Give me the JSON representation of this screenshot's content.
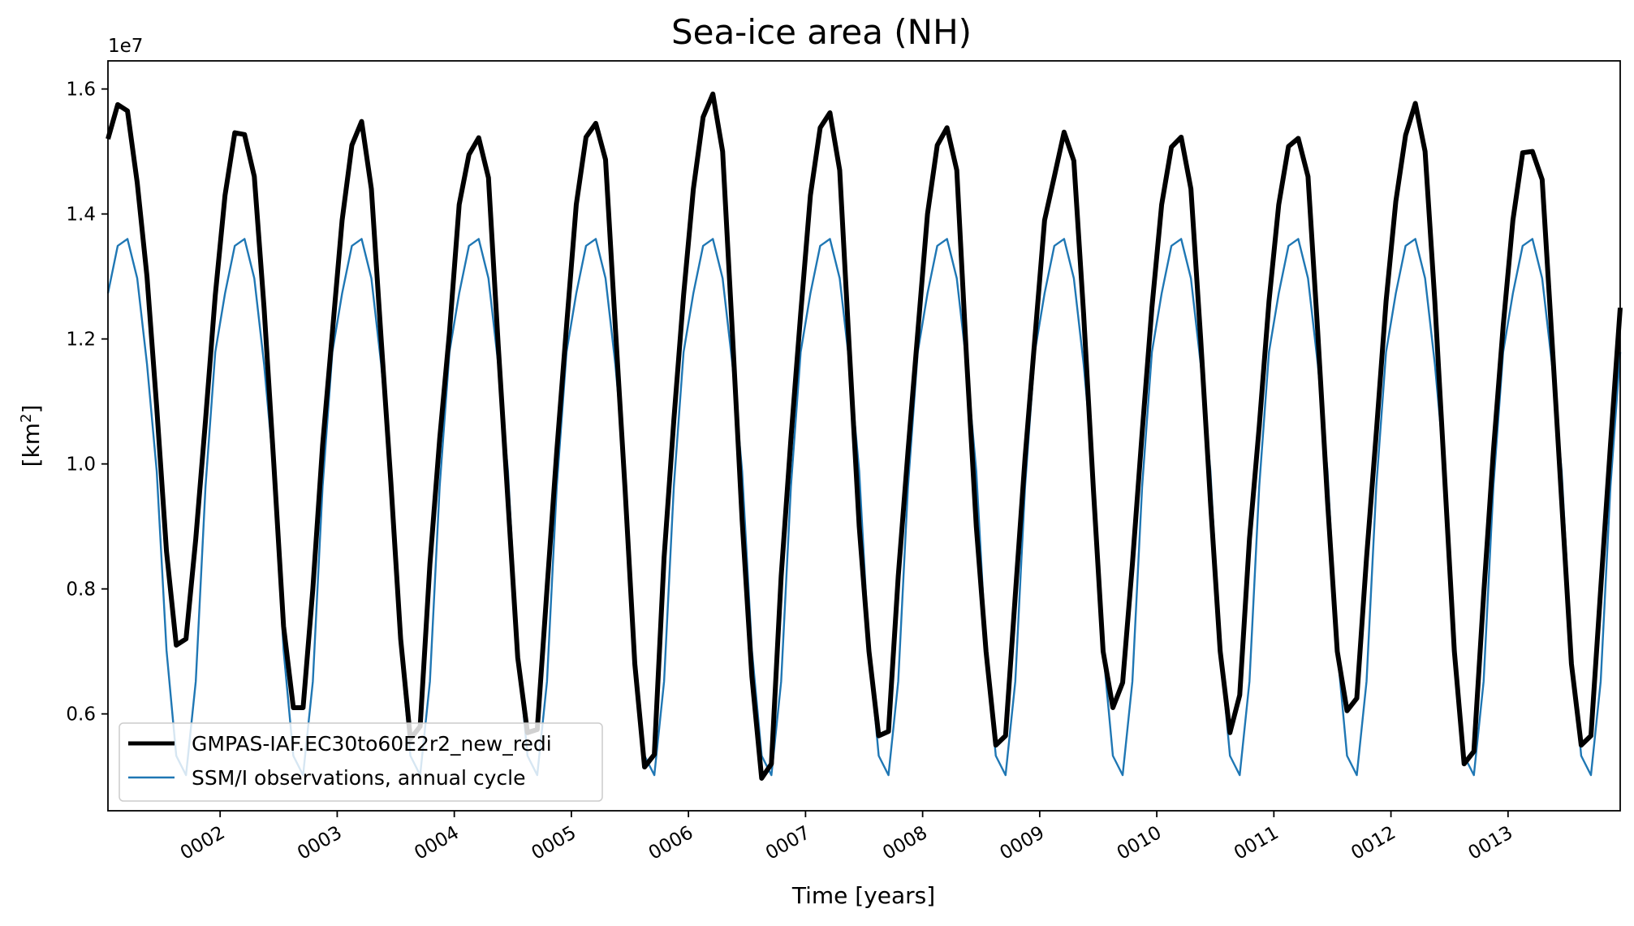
{
  "chart_data": {
    "type": "line",
    "title": "Sea-ice area (NH)",
    "xlabel": "Time [years]",
    "ylabel_main": "[km",
    "ylabel_sup": "2",
    "ylabel_close": "]",
    "y_scale_label": "1e7",
    "xlim": [
      1.042,
      13.958
    ],
    "ylim": [
      4450000,
      16450000
    ],
    "x_ticks": [
      2,
      3,
      4,
      5,
      6,
      7,
      8,
      9,
      10,
      11,
      12,
      13
    ],
    "x_tick_labels": [
      "0002",
      "0003",
      "0004",
      "0005",
      "0006",
      "0007",
      "0008",
      "0009",
      "0010",
      "0011",
      "0012",
      "0013"
    ],
    "y_ticks": [
      6000000,
      8000000,
      10000000,
      12000000,
      14000000,
      16000000
    ],
    "y_tick_labels": [
      "0.6",
      "0.8",
      "1.0",
      "1.2",
      "1.4",
      "1.6"
    ],
    "grid": false,
    "legend_position": "lower-left",
    "observation_cycle": {
      "name": "SSM/I observations, annual cycle",
      "color": "#1f77b4",
      "monthly_values": [
        12730000,
        13490000,
        13600000,
        12970000,
        11600000,
        9880000,
        7020000,
        5330000,
        5020000,
        6520000,
        9640000,
        11790000
      ]
    },
    "series": [
      {
        "name": "GMPAS-IAF.EC30to60E2r2_new_redi",
        "color": "#000000",
        "start_x": 1.042,
        "step": 0.08333,
        "values": [
          15200000,
          15750000,
          15650000,
          14500000,
          13000000,
          10900000,
          8600000,
          7100000,
          7200000,
          8800000,
          10700000,
          12700000,
          14300000,
          15300000,
          15270000,
          14600000,
          12500000,
          10000000,
          7400000,
          6100000,
          6100000,
          8000000,
          10300000,
          12100000,
          13900000,
          15100000,
          15480000,
          14400000,
          12000000,
          9700000,
          7200000,
          5600000,
          5800000,
          8400000,
          10400000,
          12100000,
          14150000,
          14950000,
          15220000,
          14580000,
          11900000,
          9400000,
          6900000,
          5700000,
          5750000,
          8000000,
          10200000,
          12200000,
          14150000,
          15230000,
          15450000,
          14870000,
          12200000,
          9600000,
          6800000,
          5150000,
          5350000,
          8500000,
          10700000,
          12700000,
          14400000,
          15550000,
          15920000,
          15000000,
          12100000,
          9100000,
          6600000,
          4970000,
          5200000,
          8200000,
          10400000,
          12400000,
          14300000,
          15380000,
          15620000,
          14700000,
          11800000,
          9000000,
          7000000,
          5650000,
          5720000,
          8200000,
          10200000,
          12100000,
          14000000,
          15100000,
          15380000,
          14700000,
          11700000,
          9000000,
          7000000,
          5500000,
          5650000,
          7900000,
          10100000,
          12000000,
          13900000,
          14600000,
          15310000,
          14850000,
          12400000,
          9600000,
          7000000,
          6100000,
          6500000,
          8400000,
          10500000,
          12500000,
          14150000,
          15070000,
          15230000,
          14400000,
          12000000,
          9400000,
          7000000,
          5700000,
          6300000,
          8800000,
          10600000,
          12600000,
          14150000,
          15080000,
          15210000,
          14600000,
          12100000,
          9400000,
          7000000,
          6050000,
          6250000,
          8500000,
          10500000,
          12600000,
          14200000,
          15260000,
          15770000,
          15000000,
          12600000,
          9800000,
          7000000,
          5200000,
          5400000,
          7900000,
          10200000,
          12200000,
          13900000,
          14980000,
          15000000,
          14550000,
          12000000,
          9400000,
          6800000,
          5500000,
          5650000,
          8000000,
          10300000,
          12500000
        ]
      }
    ]
  }
}
